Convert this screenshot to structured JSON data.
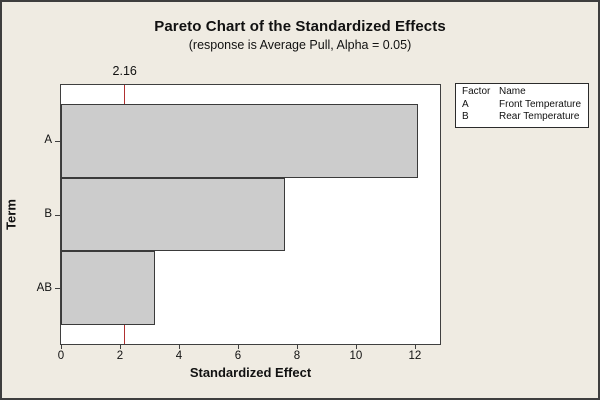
{
  "chart_data": {
    "type": "bar",
    "orientation": "horizontal",
    "title": "Pareto Chart of the Standardized Effects",
    "subtitle": "(response is Average Pull, Alpha = 0.05)",
    "xlabel": "Standardized Effect",
    "ylabel": "Term",
    "categories": [
      "A",
      "B",
      "AB"
    ],
    "values": [
      12.1,
      7.6,
      3.2
    ],
    "xlim": [
      0,
      12.85
    ],
    "xticks": [
      0,
      2,
      4,
      6,
      8,
      10,
      12
    ],
    "grid": false,
    "reference_line": {
      "value": 2.16,
      "label": "2.16",
      "color": "#B03030"
    },
    "legend": {
      "position": "top-right",
      "headers": [
        "Factor",
        "Name"
      ],
      "rows": [
        [
          "A",
          "Front Temperature"
        ],
        [
          "B",
          "Rear Temperature"
        ]
      ]
    }
  },
  "colors": {
    "canvas_bg": "#EFEBE2",
    "plot_bg": "#FFFFFF",
    "frame": "#3F3F3F",
    "bar_fill": "#CCCCCC",
    "bar_border": "#3A3A3A",
    "reference_line": "#B03030",
    "text": "#111111"
  }
}
